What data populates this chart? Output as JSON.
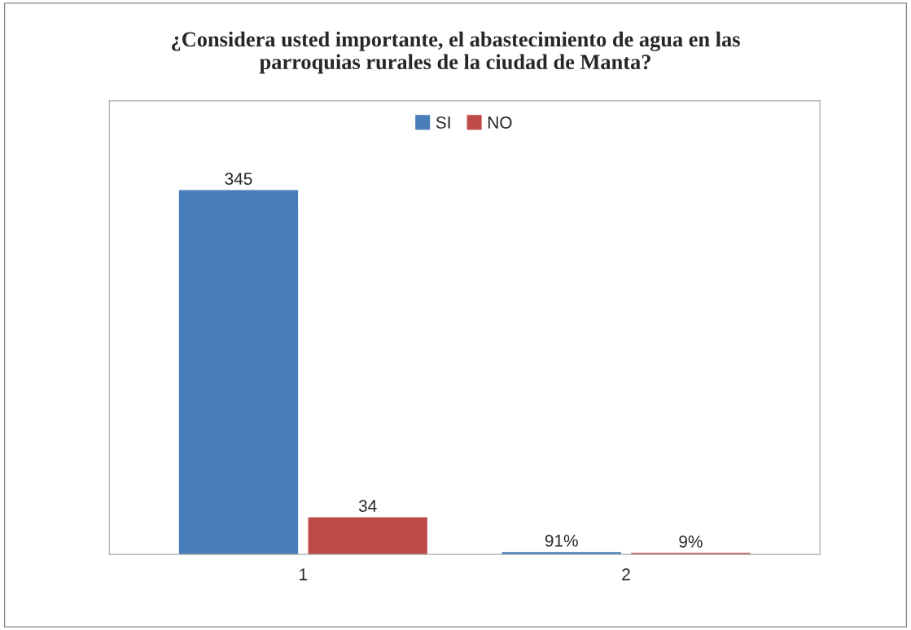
{
  "chart_data": {
    "type": "bar",
    "title": "¿Considera usted importante, el abastecimiento de agua en las\nparroquias rurales de la ciudad de Manta?",
    "categories": [
      "1",
      "2"
    ],
    "series": [
      {
        "name": "SI",
        "color": "#4a7ebb",
        "values": [
          345,
          0.91
        ],
        "value_labels": [
          "345",
          "91%"
        ]
      },
      {
        "name": "NO",
        "color": "#be4b48",
        "values": [
          34,
          0.09
        ],
        "value_labels": [
          "34",
          "9%"
        ]
      }
    ],
    "legend": "top",
    "grid": false
  }
}
